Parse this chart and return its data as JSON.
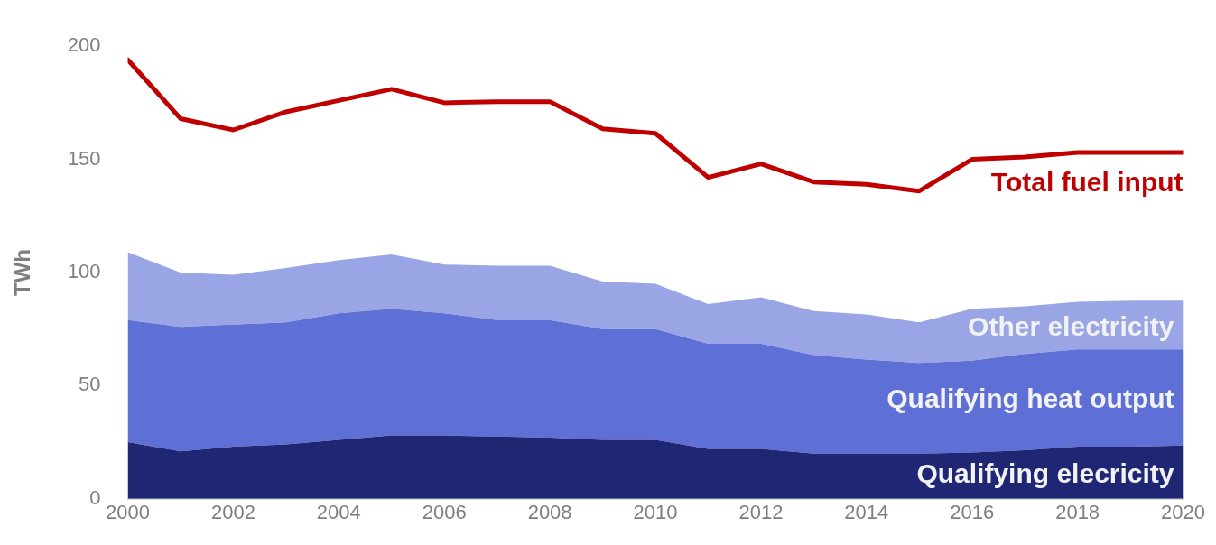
{
  "chart_data": {
    "type": "area",
    "stacked": true,
    "ylabel": "TWh",
    "x": [
      2000,
      2001,
      2002,
      2003,
      2004,
      2005,
      2006,
      2007,
      2008,
      2009,
      2010,
      2011,
      2012,
      2013,
      2014,
      2015,
      2016,
      2017,
      2018,
      2019,
      2020
    ],
    "xlim": [
      2000,
      2020
    ],
    "xticks": [
      2000,
      2002,
      2004,
      2006,
      2008,
      2010,
      2012,
      2014,
      2016,
      2018,
      2020
    ],
    "ylim": [
      0,
      200
    ],
    "yticks": [
      0,
      50,
      100,
      150,
      200
    ],
    "grid": false,
    "legend": false,
    "marker": "none",
    "series": [
      {
        "name": "Qualifying elecricity",
        "color": "#1f2775",
        "values": [
          25,
          21,
          23,
          24,
          26,
          28,
          28,
          27.5,
          27,
          26,
          26,
          22,
          22,
          20,
          20,
          20,
          20.5,
          21.5,
          23,
          23,
          23.5
        ]
      },
      {
        "name": "Qualifying heat output",
        "color": "#5e6fd6",
        "values": [
          54,
          55,
          54,
          54,
          56,
          56,
          54,
          51.5,
          52,
          49,
          49,
          46.5,
          46.5,
          43.5,
          41.5,
          40,
          40.5,
          42.5,
          43,
          43,
          42.5
        ]
      },
      {
        "name": "Other electricity",
        "color": "#9aa5e5",
        "values": [
          30,
          24,
          22,
          24,
          23.5,
          24,
          21.5,
          24,
          24,
          21,
          20,
          17.5,
          20.5,
          19.5,
          20,
          18,
          23,
          21,
          21,
          21.5,
          21.5
        ]
      },
      {
        "name": "Total fuel input",
        "type": "line",
        "color": "#c00000",
        "values": [
          194,
          168,
          163,
          171,
          176,
          181,
          175,
          175.5,
          175.5,
          163.5,
          161.5,
          142,
          148,
          140,
          139,
          136,
          150,
          151,
          153,
          153,
          153
        ]
      }
    ]
  }
}
